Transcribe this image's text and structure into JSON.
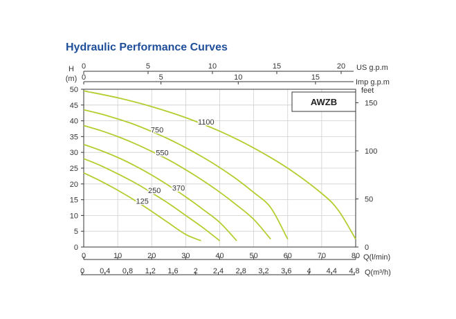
{
  "title": "Hydraulic Performance Curves",
  "colors": {
    "title": "#1f4e9a",
    "curve": "#b6cc2e",
    "axis": "#333333",
    "grid": "#cfcfcf"
  },
  "chart_data": {
    "type": "line",
    "title": "Hydraulic Performance Curves",
    "model_label": "AWZB",
    "grid": true,
    "axes": {
      "left": {
        "unit_line1": "H",
        "unit_line2": "(m)",
        "ticks": [
          "0",
          "5",
          "10",
          "15",
          "20",
          "25",
          "30",
          "35",
          "40",
          "45",
          "50"
        ],
        "range": [
          0,
          50
        ]
      },
      "right": {
        "unit": "feet",
        "ticks": [
          "0",
          "50",
          "100",
          "150"
        ],
        "range": [
          0,
          164
        ]
      },
      "bottom_q": {
        "unit": "Q(l/min)",
        "ticks": [
          "0",
          "10",
          "20",
          "30",
          "40",
          "50",
          "60",
          "70",
          "80"
        ],
        "range": [
          0,
          80
        ]
      },
      "bottom_m3h": {
        "unit": "Q(m³/h)",
        "ticks": [
          "0",
          "0.4",
          "0.8",
          "1.2",
          "1.6",
          "2",
          "2.4",
          "2.8",
          "3.2",
          "3.6",
          "4",
          "4.4",
          "4.8"
        ],
        "range": [
          0,
          4.8
        ]
      },
      "top_us": {
        "unit": "US g.p.m",
        "ticks": [
          "0",
          "5",
          "10",
          "15",
          "20"
        ],
        "range": [
          0,
          21.13
        ]
      },
      "top_imp": {
        "unit": "Imp g.p.m",
        "ticks": [
          "0",
          "5",
          "10",
          "15"
        ],
        "range": [
          0,
          17.6
        ]
      }
    },
    "series": [
      {
        "name": "125",
        "x": [
          0,
          5,
          10,
          15,
          20,
          25,
          30,
          34.5
        ],
        "y": [
          23.5,
          20.9,
          18.0,
          14.8,
          11.3,
          7.6,
          4.0,
          2.0
        ]
      },
      {
        "name": "250",
        "x": [
          0,
          5,
          10,
          15,
          20,
          25,
          30,
          35,
          40
        ],
        "y": [
          28,
          25.8,
          23.2,
          20.4,
          17.2,
          13.8,
          10.0,
          6.2,
          2.0
        ]
      },
      {
        "name": "370",
        "x": [
          0,
          5,
          10,
          15,
          20,
          25,
          30,
          35,
          40,
          45
        ],
        "y": [
          32.5,
          30.6,
          28.4,
          25.8,
          22.8,
          19.5,
          15.9,
          12.0,
          7.8,
          2.0
        ]
      },
      {
        "name": "550",
        "x": [
          0,
          5,
          10,
          15,
          20,
          25,
          30,
          35,
          40,
          45,
          50,
          55
        ],
        "y": [
          38.5,
          36.9,
          35.0,
          32.8,
          30.3,
          27.6,
          24.5,
          21.1,
          17.4,
          13.3,
          8.8,
          2.5
        ]
      },
      {
        "name": "750",
        "x": [
          0,
          5,
          10,
          15,
          20,
          25,
          30,
          35,
          40,
          45,
          50,
          55,
          60
        ],
        "y": [
          43.5,
          42.2,
          40.6,
          38.8,
          36.6,
          34.2,
          31.5,
          28.5,
          25.2,
          21.5,
          17.3,
          12.5,
          2.5
        ]
      },
      {
        "name": "1100",
        "x": [
          0,
          10,
          20,
          30,
          40,
          50,
          60,
          70,
          75,
          80
        ],
        "y": [
          49.5,
          47.3,
          44.5,
          41.0,
          36.7,
          31.4,
          25.0,
          17.0,
          11.5,
          2.5
        ]
      }
    ],
    "curve_labels": [
      {
        "text": "1100",
        "series": "1100"
      },
      {
        "text": "750",
        "series": "750"
      },
      {
        "text": "550",
        "series": "550"
      },
      {
        "text": "370",
        "series": "370"
      },
      {
        "text": "250",
        "series": "250"
      },
      {
        "text": "125",
        "series": "125"
      }
    ]
  }
}
